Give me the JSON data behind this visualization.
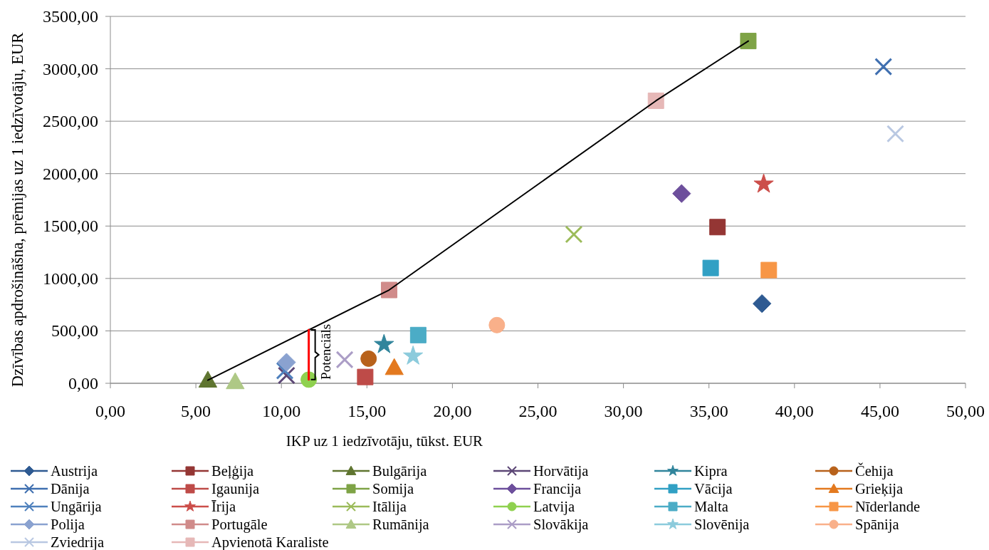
{
  "chart_data": {
    "type": "scatter",
    "xlabel": "IKP uz 1 iedzīvotāju, tūkst. EUR",
    "ylabel": "Dzīvības apdrošināšna, prēmijas uz 1 iedzīvotāju, EUR",
    "xlim": [
      0,
      50
    ],
    "xticks": [
      {
        "value": 0,
        "label": "0,00"
      },
      {
        "value": 5,
        "label": "5,00"
      },
      {
        "value": 10,
        "label": "10,00"
      },
      {
        "value": 15,
        "label": "15,00"
      },
      {
        "value": 20,
        "label": "20,00"
      },
      {
        "value": 25,
        "label": "25,00"
      },
      {
        "value": 30,
        "label": "30,00"
      },
      {
        "value": 35,
        "label": "35,00"
      },
      {
        "value": 40,
        "label": "40,00"
      },
      {
        "value": 45,
        "label": "45,00"
      },
      {
        "value": 50,
        "label": "50,00"
      }
    ],
    "ylim": [
      0,
      3500
    ],
    "yticks": [
      {
        "value": 0,
        "label": "0,00"
      },
      {
        "value": 500,
        "label": "500,00"
      },
      {
        "value": 1000,
        "label": "1000,00"
      },
      {
        "value": 1500,
        "label": "1500,00"
      },
      {
        "value": 2000,
        "label": "2000,00"
      },
      {
        "value": 2500,
        "label": "2500,00"
      },
      {
        "value": 3000,
        "label": "3000,00"
      },
      {
        "value": 3500,
        "label": "3500,00"
      }
    ],
    "grid": "y",
    "legend": "bottom",
    "annotations": [
      {
        "text": "Potenciāls",
        "x": 11.6,
        "y": 300
      }
    ],
    "series": [
      {
        "name": "Austrija",
        "color": "#2e5a92",
        "marker": "diamond",
        "x": [
          38.1
        ],
        "values": [
          760
        ]
      },
      {
        "name": "Beļģija",
        "color": "#943634",
        "marker": "square",
        "x": [
          35.5
        ],
        "values": [
          1490
        ]
      },
      {
        "name": "Bulgārija",
        "color": "#5f7530",
        "marker": "triangle",
        "x": [
          5.7
        ],
        "values": [
          30
        ]
      },
      {
        "name": "Horvātija",
        "color": "#5c4776",
        "marker": "cross",
        "x": [
          10.3
        ],
        "values": [
          75
        ]
      },
      {
        "name": "Kipra",
        "color": "#31859c",
        "marker": "star",
        "x": [
          16.0
        ],
        "values": [
          370
        ]
      },
      {
        "name": "Čehija",
        "color": "#b8621b",
        "marker": "circle",
        "x": [
          15.1
        ],
        "values": [
          235
        ]
      },
      {
        "name": "Dānija",
        "color": "#3f6fb0",
        "marker": "cross",
        "x": [
          45.2
        ],
        "values": [
          3020
        ]
      },
      {
        "name": "Igaunija",
        "color": "#be4b48",
        "marker": "square",
        "x": [
          14.9
        ],
        "values": [
          60
        ]
      },
      {
        "name": "Somija",
        "color": "#7ea346",
        "marker": "square",
        "x": [
          37.3
        ],
        "values": [
          3265
        ]
      },
      {
        "name": "Francija",
        "color": "#6d4f9c",
        "marker": "diamond",
        "x": [
          33.4
        ],
        "values": [
          1810
        ]
      },
      {
        "name": "Vācija",
        "color": "#31a0c4",
        "marker": "square",
        "x": [
          35.1
        ],
        "values": [
          1100
        ]
      },
      {
        "name": "Grieķija",
        "color": "#e3791f",
        "marker": "triangle",
        "x": [
          16.6
        ],
        "values": [
          150
        ]
      },
      {
        "name": "Ungārija",
        "color": "#4f81bd",
        "marker": "cross",
        "x": [
          10.2
        ],
        "values": [
          120
        ]
      },
      {
        "name": "Īrija",
        "color": "#cc4e4a",
        "marker": "star",
        "x": [
          38.2
        ],
        "values": [
          1900
        ]
      },
      {
        "name": "Itālija",
        "color": "#9bbb59",
        "marker": "cross",
        "x": [
          27.1
        ],
        "values": [
          1420
        ]
      },
      {
        "name": "Latvija",
        "color": "#8fd14f",
        "marker": "circle",
        "x": [
          11.6
        ],
        "values": [
          35
        ]
      },
      {
        "name": "Malta",
        "color": "#4bacc6",
        "marker": "square",
        "x": [
          18.0
        ],
        "values": [
          460
        ]
      },
      {
        "name": "Nīderlande",
        "color": "#f79646",
        "marker": "square",
        "x": [
          38.5
        ],
        "values": [
          1080
        ]
      },
      {
        "name": "Polija",
        "color": "#8aa2d0",
        "marker": "diamond",
        "x": [
          10.3
        ],
        "values": [
          200
        ]
      },
      {
        "name": "Portugāle",
        "color": "#d08b8a",
        "marker": "square",
        "x": [
          16.3
        ],
        "values": [
          890
        ]
      },
      {
        "name": "Rumānija",
        "color": "#aec885",
        "marker": "triangle",
        "x": [
          7.3
        ],
        "values": [
          15
        ]
      },
      {
        "name": "Slovākija",
        "color": "#ab9dc6",
        "marker": "cross",
        "x": [
          13.7
        ],
        "values": [
          225
        ]
      },
      {
        "name": "Slovēnija",
        "color": "#8ccbdc",
        "marker": "star",
        "x": [
          17.7
        ],
        "values": [
          260
        ]
      },
      {
        "name": "Spānija",
        "color": "#f9b08a",
        "marker": "circle",
        "x": [
          22.6
        ],
        "values": [
          555
        ]
      },
      {
        "name": "Zviedrija",
        "color": "#b9c8e2",
        "marker": "cross",
        "x": [
          45.9
        ],
        "values": [
          2380
        ]
      },
      {
        "name": "Apvienotā Karaliste",
        "color": "#e6b8b7",
        "marker": "square",
        "x": [
          31.9
        ],
        "values": [
          2695
        ]
      },
      {
        "type": "line",
        "color": "#000000",
        "x": [
          5.7,
          16.3,
          31.9,
          37.3
        ],
        "values": [
          30,
          890,
          2695,
          3265
        ]
      },
      {
        "type": "line",
        "color": "#ff0000",
        "x": [
          11.6,
          11.6
        ],
        "values": [
          35,
          510
        ]
      }
    ]
  }
}
